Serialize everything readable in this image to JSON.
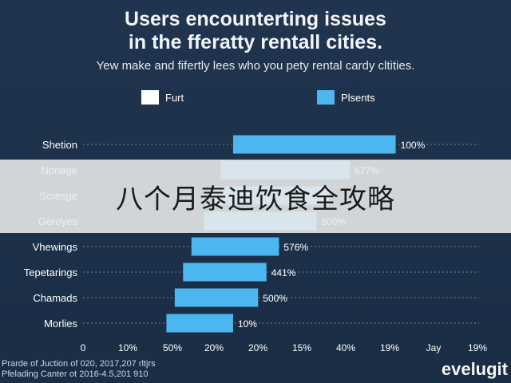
{
  "header": {
    "title_line1": "Users encounterting issues",
    "title_line2": "in the fferatty rentall cities.",
    "subtitle": "Yew make and fifertly lees who you pety rental cardy cltities."
  },
  "legend": [
    {
      "label": "Furt",
      "color": "#ffffff"
    },
    {
      "label": "Plsents",
      "color": "#4bb7ee"
    }
  ],
  "overlay": {
    "text": "八个月泰迪饮食全攻略"
  },
  "footer": {
    "source_line1": "Prarde of Juction of 020, 2017,207 rltjrs",
    "source_line2": "Pfelading Canter ot 2016-4.5,201 910",
    "logo": "evelugit"
  },
  "chart_data": {
    "type": "bar",
    "orientation": "horizontal",
    "style": "floating",
    "bar_color": "#4bb7ee",
    "categories": [
      "Shetion",
      "Noriege",
      "Scresge",
      "Geroyes",
      "Vhewings",
      "Tepetarings",
      "Chamads",
      "Morlies"
    ],
    "series": [
      {
        "name": "Plsents",
        "start": [
          3.6,
          3.3,
          3.1,
          2.9,
          2.6,
          2.4,
          2.2,
          2.0
        ],
        "end": [
          7.5,
          6.4,
          5.9,
          5.6,
          4.7,
          4.4,
          4.2,
          3.6
        ],
        "labels": [
          "100%",
          "677%",
          "",
          "800%",
          "576%",
          "441%",
          "500%",
          "10%"
        ]
      }
    ],
    "xticks": [
      "0",
      "10%",
      "50%",
      "20%",
      "20%",
      "15%",
      "40%",
      "19%",
      "Jay",
      "19%"
    ],
    "xlim": [
      0,
      9.5
    ],
    "grid": "horizontal-dotted"
  }
}
